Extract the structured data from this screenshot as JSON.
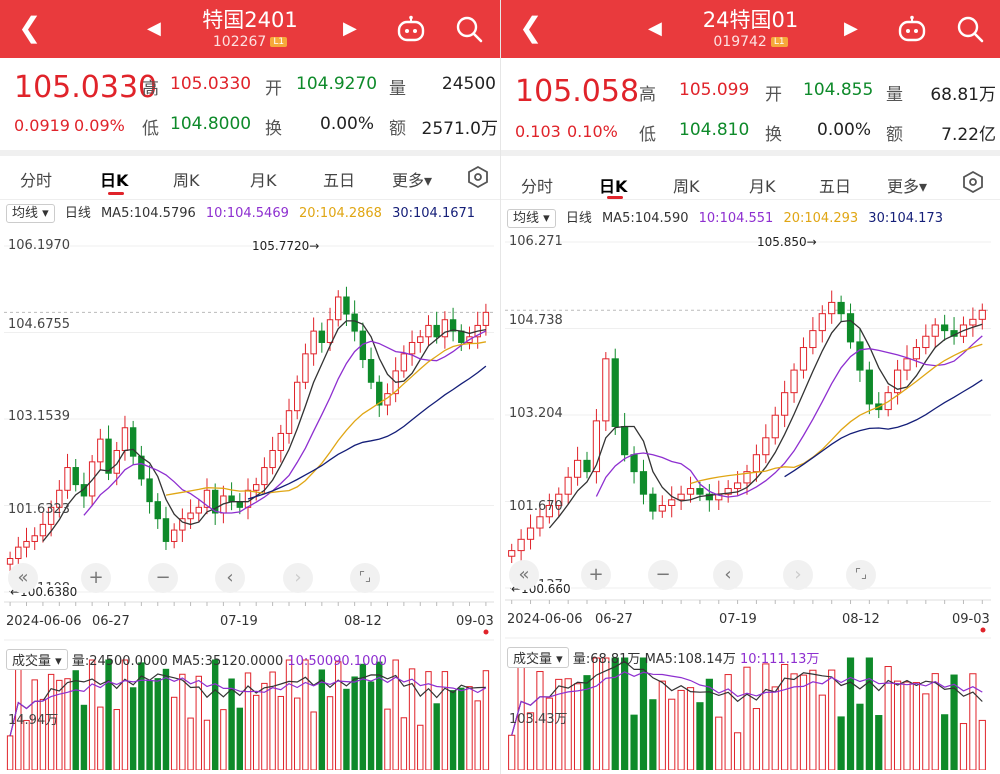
{
  "panels": [
    {
      "header": {
        "title": "特国2401",
        "code": "102267",
        "level": "L1"
      },
      "quote": {
        "price": "105.0330",
        "change": "0.0919",
        "change_pct": "0.09%",
        "high_label": "高",
        "high": "105.0330",
        "open_label": "开",
        "open": "104.9270",
        "vol_label": "量",
        "vol": "24500",
        "low_label": "低",
        "low": "104.8000",
        "turn_label": "换",
        "turn": "0.00%",
        "amt_label": "额",
        "amt": "2571.0万"
      },
      "tabs": [
        "分时",
        "日K",
        "周K",
        "月K",
        "五日",
        "更多▾"
      ],
      "ma": {
        "type": "均线 ▾",
        "period": "日线",
        "ma5": "MA5:104.5796",
        "ma10": "10:104.5469",
        "ma20": "20:104.2868",
        "ma30": "30:104.1671"
      },
      "y_labels": [
        "106.1970",
        "104.6755",
        "103.1539",
        "101.6323",
        "100.1108"
      ],
      "x_labels": [
        "2024-06-06",
        "06-27",
        "07-19",
        "08-12",
        "09-03"
      ],
      "max_label": "105.7720→",
      "min_label": "←100.6380",
      "volume": {
        "type": "成交量 ▾",
        "vol": "量:24500.0000",
        "ma5": "MA5:35120.0000",
        "ma10": "10:50090.1000",
        "axis": "14.94万"
      }
    },
    {
      "header": {
        "title": "24特国01",
        "code": "019742",
        "level": "L1"
      },
      "quote": {
        "price": "105.058",
        "change": "0.103",
        "change_pct": "0.10%",
        "high_label": "高",
        "high": "105.099",
        "open_label": "开",
        "open": "104.855",
        "vol_label": "量",
        "vol": "68.81万",
        "low_label": "低",
        "low": "104.810",
        "turn_label": "换",
        "turn": "0.00%",
        "amt_label": "额",
        "amt": "7.22亿"
      },
      "tabs": [
        "分时",
        "日K",
        "周K",
        "月K",
        "五日",
        "更多▾"
      ],
      "ma": {
        "type": "均线 ▾",
        "period": "日线",
        "ma5": "MA5:104.590",
        "ma10": "10:104.551",
        "ma20": "20:104.293",
        "ma30": "30:104.173"
      },
      "y_labels": [
        "106.271",
        "104.738",
        "103.204",
        "101.670",
        "100.137"
      ],
      "x_labels": [
        "2024-06-06",
        "06-27",
        "07-19",
        "08-12",
        "09-03"
      ],
      "max_label": "105.850→",
      "min_label": "←100.660",
      "volume": {
        "type": "成交量 ▾",
        "vol": "量:68.81万",
        "ma5": "MA5:108.14万",
        "ma10": "10:111.13万",
        "axis": "103.43万"
      }
    }
  ],
  "colors": {
    "up": "#e0232a",
    "down": "#0e8a2a",
    "header": "#e93a3d",
    "ma5": "#333333",
    "ma10": "#8e2fd0",
    "ma20": "#e0a614",
    "ma30": "#141e78"
  },
  "controls": [
    "«",
    "+",
    "−",
    "‹",
    "›",
    "⌜⌟"
  ],
  "chart_data": [
    {
      "type": "candlestick",
      "series": [
        {
          "name": "特国2401",
          "close": [
            100.7,
            100.9,
            101.0,
            101.1,
            101.3,
            101.6,
            101.9,
            102.3,
            102.0,
            101.8,
            102.4,
            102.8,
            102.2,
            102.6,
            103.0,
            102.5,
            102.1,
            101.7,
            101.4,
            101.0,
            101.2,
            101.4,
            101.5,
            101.6,
            101.9,
            101.5,
            101.8,
            101.7,
            101.6,
            101.9,
            102.0,
            102.3,
            102.6,
            102.9,
            103.3,
            103.8,
            104.3,
            104.7,
            104.5,
            104.9,
            105.3,
            105.0,
            104.7,
            104.2,
            103.8,
            103.4,
            103.6,
            104.0,
            104.3,
            104.5,
            104.6,
            104.8,
            104.6,
            104.9,
            104.7,
            104.5,
            104.6,
            104.8,
            105.03
          ]
        }
      ]
    },
    {
      "type": "candlestick",
      "series": [
        {
          "name": "24特国01",
          "close": [
            100.8,
            101.0,
            101.2,
            101.4,
            101.6,
            101.8,
            102.1,
            102.4,
            102.2,
            103.1,
            104.2,
            103.0,
            102.5,
            102.2,
            101.8,
            101.5,
            101.6,
            101.7,
            101.8,
            101.9,
            101.8,
            101.7,
            101.8,
            101.9,
            102.0,
            102.2,
            102.5,
            102.8,
            103.2,
            103.6,
            104.0,
            104.4,
            104.7,
            105.0,
            105.2,
            105.0,
            104.5,
            104.0,
            103.4,
            103.3,
            103.6,
            104.0,
            104.2,
            104.4,
            104.6,
            104.8,
            104.7,
            104.6,
            104.8,
            104.9,
            105.06
          ]
        }
      ]
    }
  ]
}
